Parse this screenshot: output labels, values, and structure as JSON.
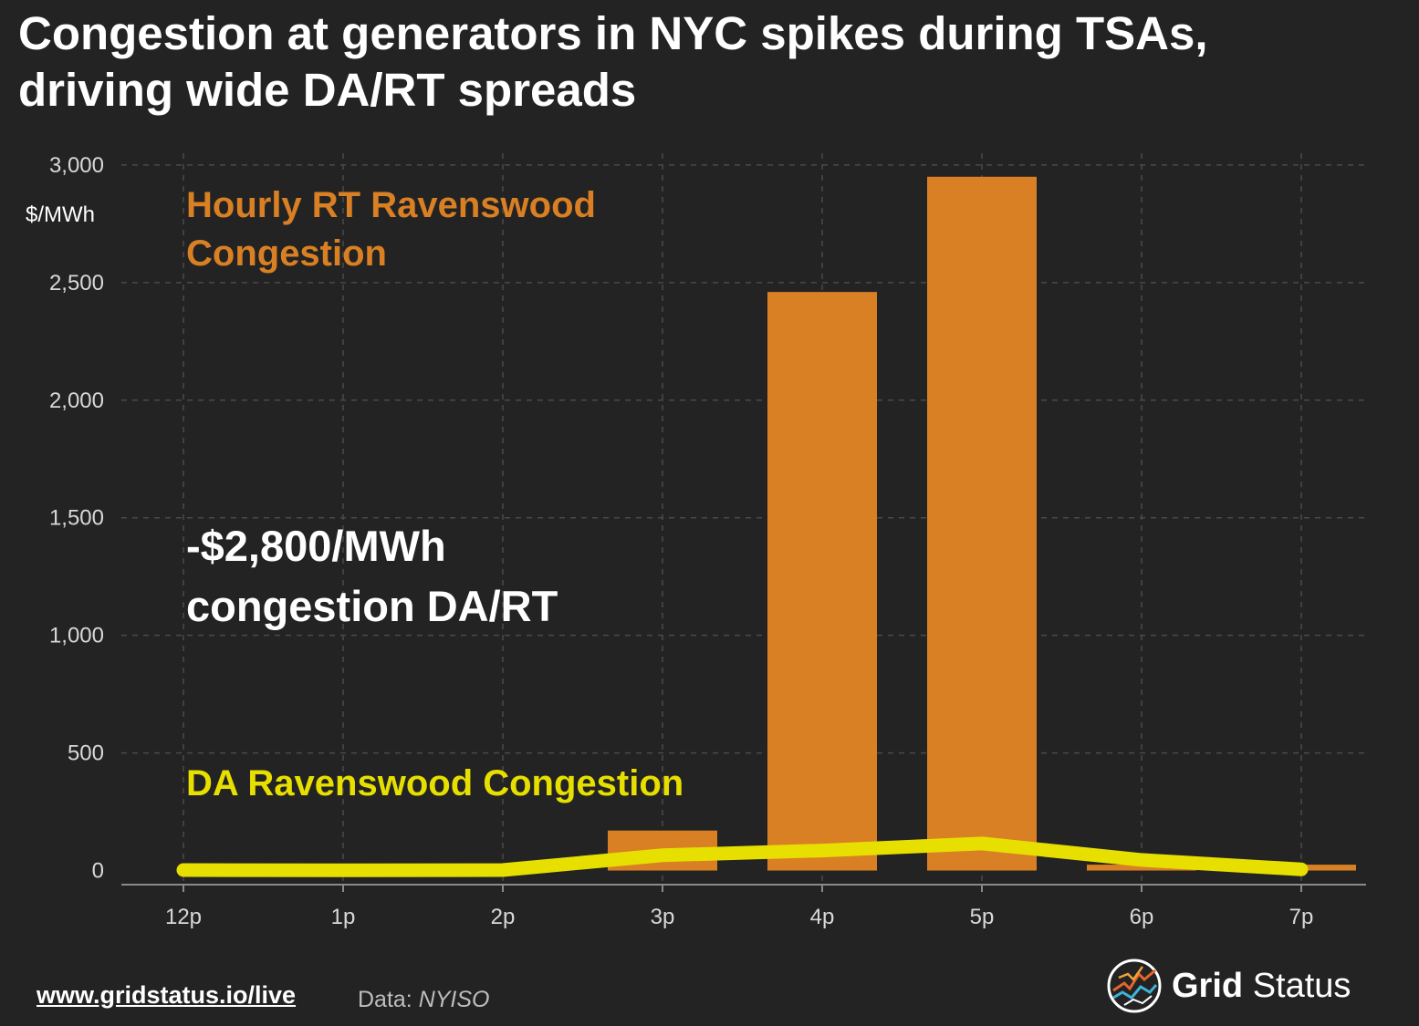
{
  "title": {
    "line1": "Congestion at generators in NYC spikes during TSAs,",
    "line2": "driving wide DA/RT spreads"
  },
  "chart_data": {
    "type": "bar",
    "categories": [
      "12p",
      "1p",
      "2p",
      "3p",
      "4p",
      "5p",
      "6p",
      "7p"
    ],
    "ylabel": "$/MWh",
    "ylim": [
      -60,
      3050
    ],
    "yticks": [
      0,
      500,
      1000,
      1500,
      2000,
      2500,
      3000
    ],
    "ytick_labels": [
      "0",
      "500",
      "1,000",
      "1,500",
      "2,000",
      "2,500",
      "3,000"
    ],
    "grid": true,
    "series": [
      {
        "name": "Hourly RT Ravenswood Congestion",
        "type": "bar",
        "color": "#d97f24",
        "values": [
          0,
          0,
          0,
          170,
          2460,
          2950,
          25,
          25
        ]
      },
      {
        "name": "DA Ravenswood Congestion",
        "type": "line",
        "color": "#e6df00",
        "values": [
          2,
          1,
          2,
          65,
          85,
          115,
          45,
          5
        ]
      }
    ],
    "annotations": {
      "rt_label": [
        "Hourly RT Ravenswood",
        "Congestion"
      ],
      "spread_label": [
        "-$2,800/MWh",
        "congestion DA/RT"
      ],
      "da_label": "DA Ravenswood Congestion"
    }
  },
  "footer": {
    "link": "www.gridstatus.io/live",
    "source_prefix": "Data: ",
    "source_name": "NYISO",
    "brand_bold": "Grid",
    "brand_rest": "Status",
    "logo_icon": "grid-status-logo-icon"
  }
}
